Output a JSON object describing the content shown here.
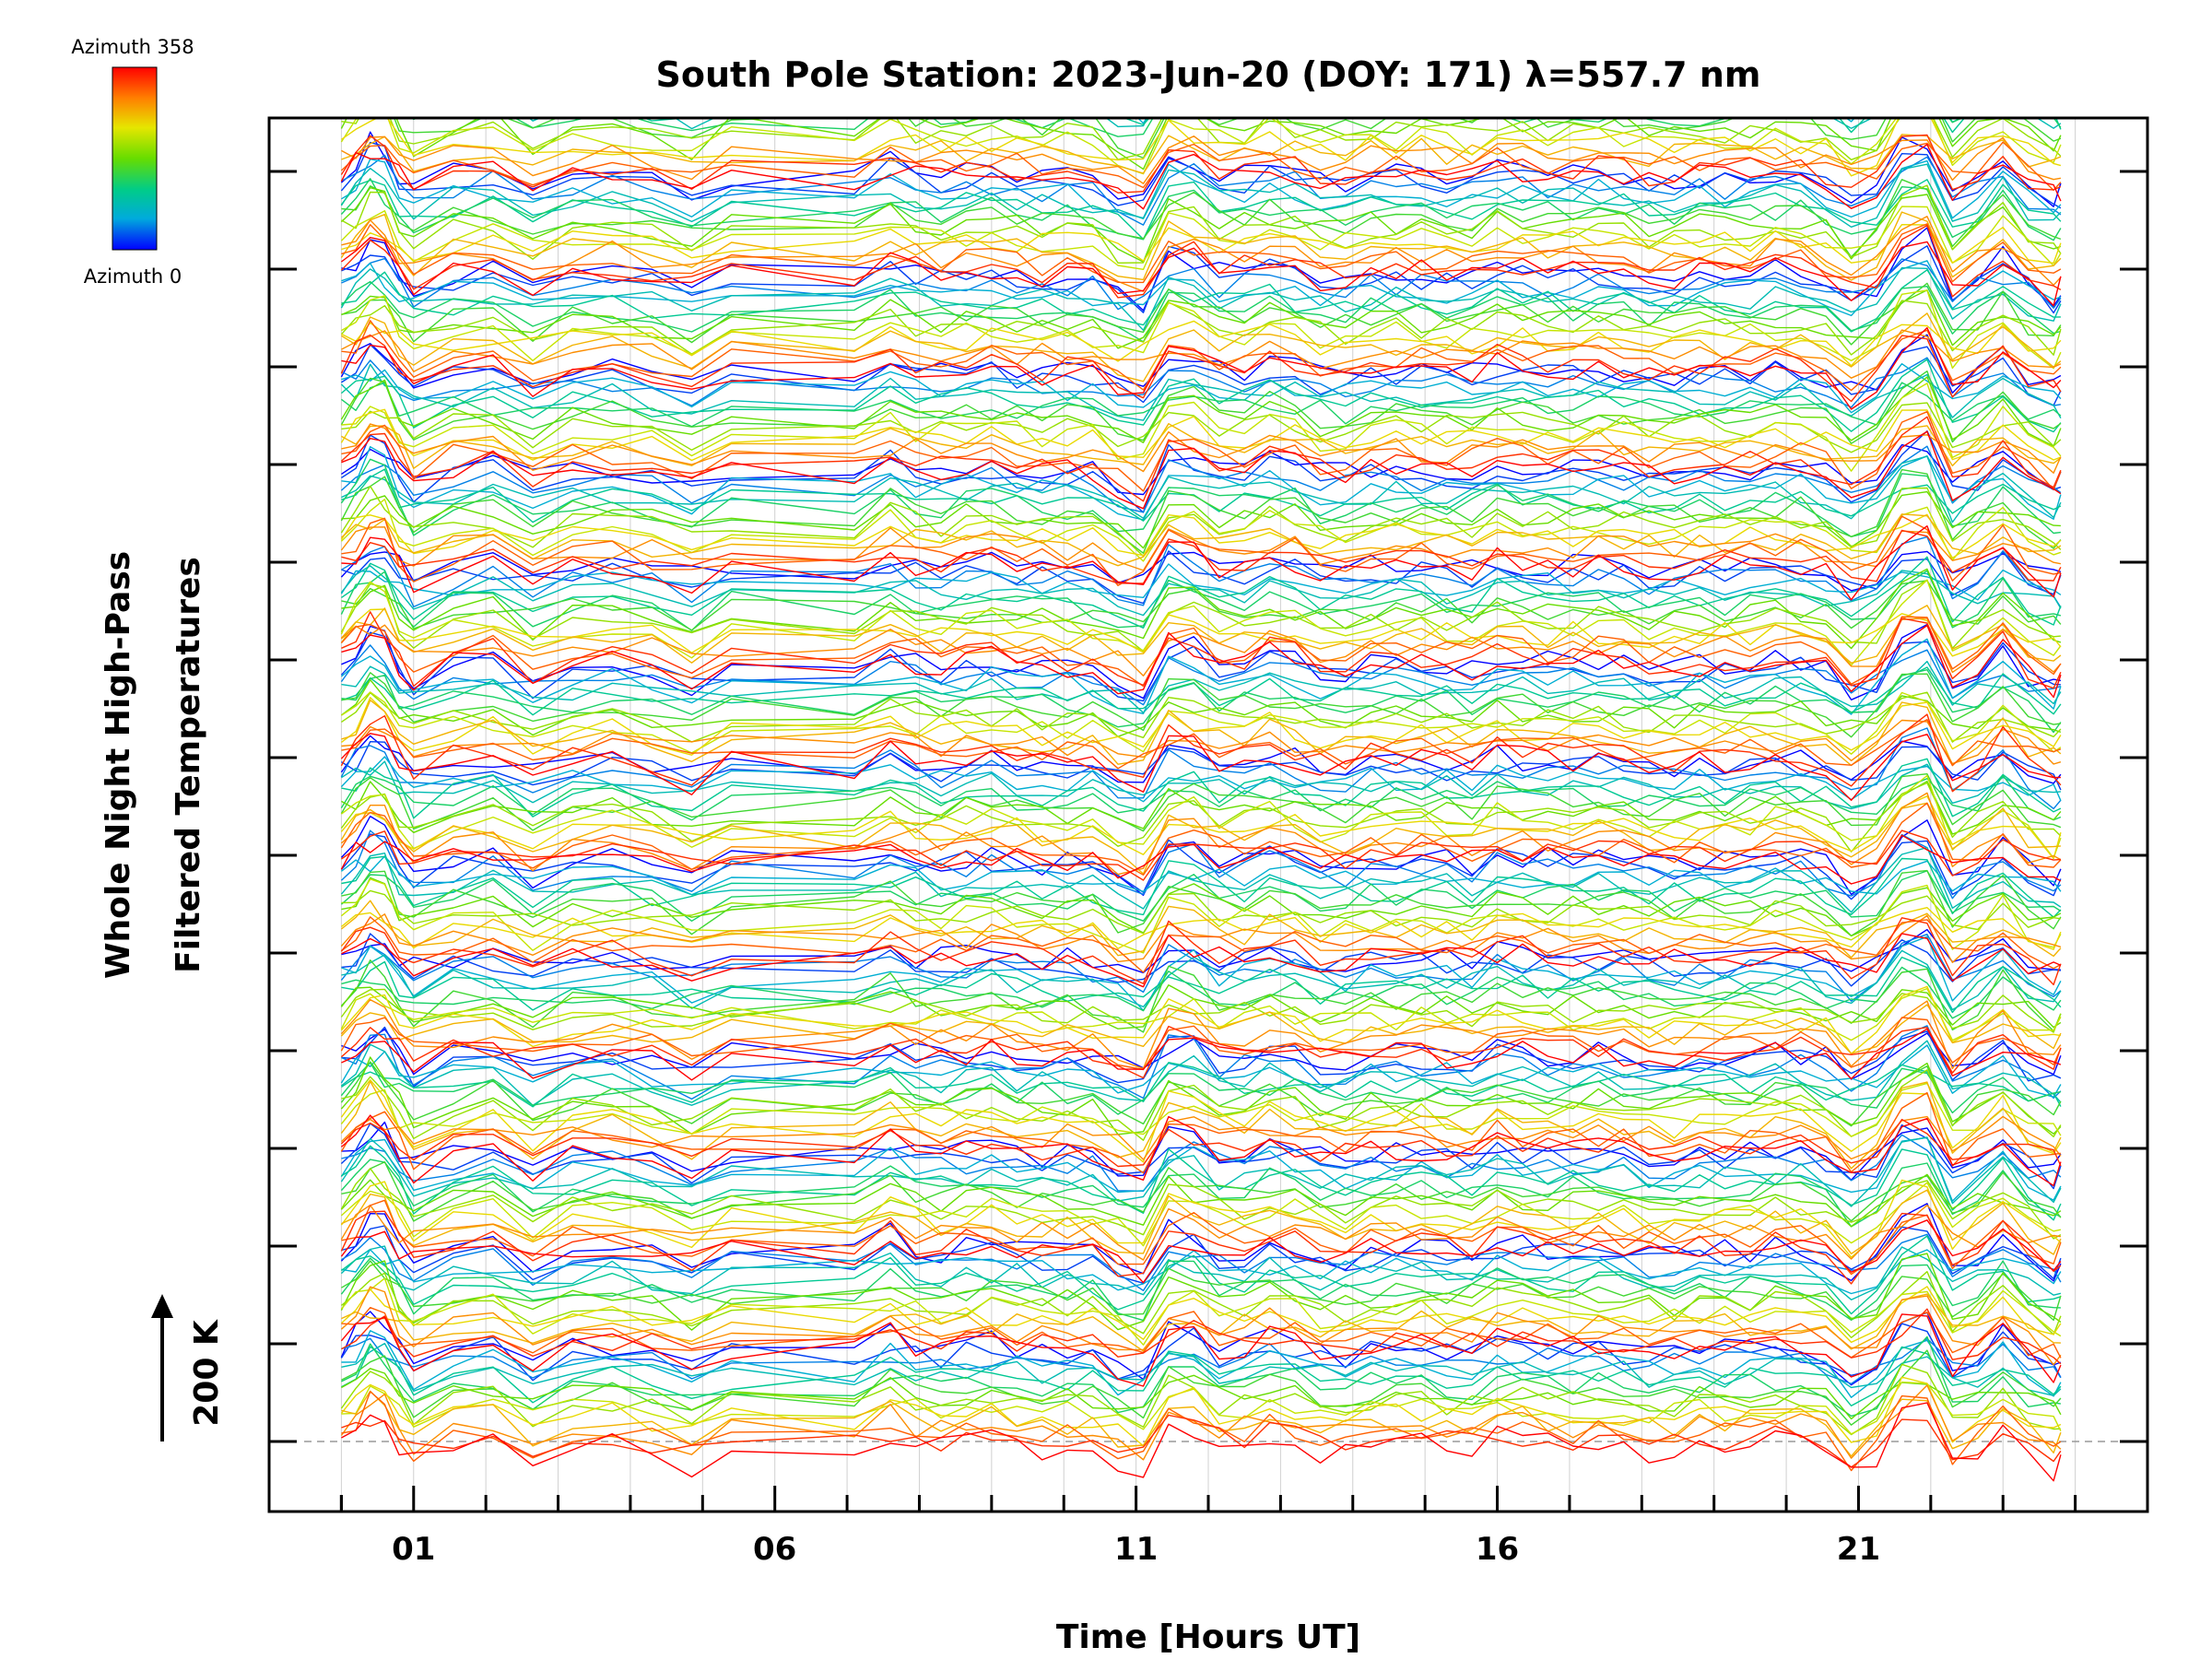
{
  "chart_data": {
    "type": "line",
    "title": "South Pole Station: 2023-Jun-20 (DOY: 171) λ=557.7 nm",
    "xlabel": "Time [Hours UT]",
    "ylabel_line1": "Whole Night High-Pass",
    "ylabel_line2": "Filtered Temperatures",
    "xlim": [
      -1,
      25
    ],
    "x_ticks": [
      {
        "value": 1,
        "label": "01"
      },
      {
        "value": 6,
        "label": "06"
      },
      {
        "value": 11,
        "label": "11"
      },
      {
        "value": 16,
        "label": "16"
      },
      {
        "value": 21,
        "label": "21"
      }
    ],
    "x_minor_step": 1,
    "grid": true,
    "data_start_hour": 0,
    "data_end_hour": 24,
    "scale_bar": {
      "label": "200 K"
    },
    "colorbar": {
      "top_label": "Azimuth 358",
      "bottom_label": "Azimuth 0",
      "colors": [
        "#ff0000",
        "#ff8000",
        "#e6e600",
        "#66dd00",
        "#00cc88",
        "#00aadd",
        "#0000ff"
      ]
    },
    "series_groups": 14,
    "azimuths_per_group": 17,
    "note": "Stacked traces of high-pass filtered temperature per azimuth; each group of traces offset vertically; colored by azimuth 0 (blue) to 358 (red)."
  }
}
